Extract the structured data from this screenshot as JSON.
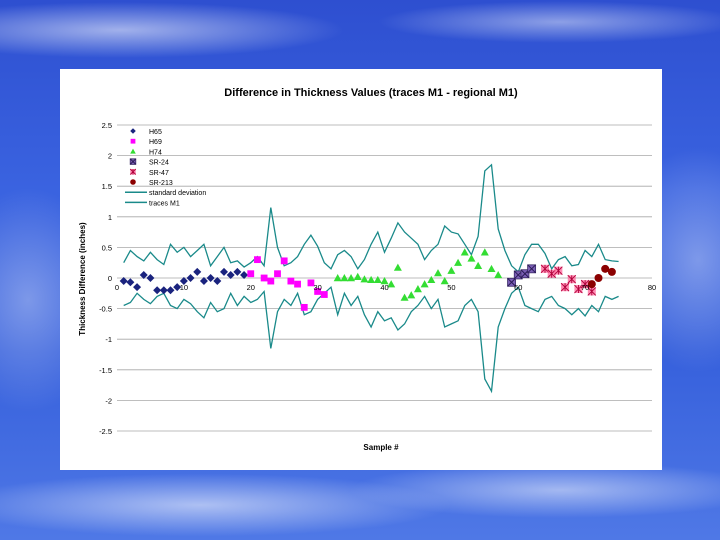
{
  "chart_data": {
    "type": "scatter",
    "title": "Difference in Thickness Values (traces M1 - regional M1)",
    "xlabel": "Sample #",
    "ylabel": "Thickness Difference (inches)",
    "xlim": [
      0,
      80
    ],
    "ylim": [
      -2.5,
      2.5
    ],
    "xticks": [
      "0",
      "10",
      "20",
      "30",
      "40",
      "50",
      "60",
      "70",
      "80"
    ],
    "yticks": [
      "2.5",
      "2",
      "1.5",
      "1",
      "0.5",
      "0",
      "-0.5",
      "-1",
      "-1.5",
      "-2",
      "-2.5"
    ],
    "grid": "horizontal",
    "legend_position": "top-left",
    "series": [
      {
        "name": "H65",
        "kind": "marker",
        "marker": "diamond",
        "color": "#1a237e",
        "x": [
          1,
          2,
          3,
          4,
          5,
          6,
          7,
          8,
          9,
          10,
          11,
          12,
          13,
          14,
          15,
          16,
          17,
          18,
          19
        ],
        "y": [
          -0.05,
          -0.07,
          -0.15,
          0.05,
          0,
          -0.2,
          -0.2,
          -0.2,
          -0.15,
          -0.05,
          0,
          0.1,
          -0.05,
          0,
          -0.05,
          0.1,
          0.05,
          0.1,
          0.05
        ]
      },
      {
        "name": "H69",
        "kind": "marker",
        "marker": "square",
        "color": "#ff00ff",
        "x": [
          20,
          21,
          22,
          23,
          24,
          25,
          26,
          27,
          28,
          29,
          30,
          31
        ],
        "y": [
          0.07,
          0.3,
          0,
          -0.05,
          0.07,
          0.28,
          -0.05,
          -0.1,
          -0.48,
          -0.08,
          -0.22,
          -0.27
        ]
      },
      {
        "name": "H74",
        "kind": "marker",
        "marker": "triangle",
        "color": "#33dd33",
        "x": [
          33,
          34,
          35,
          36,
          37,
          38,
          39,
          40,
          41,
          42,
          43,
          44,
          45,
          46,
          47,
          48,
          49,
          50,
          51,
          52,
          53,
          54,
          55,
          56,
          57
        ],
        "y": [
          0,
          0,
          0,
          0.02,
          -0.02,
          -0.03,
          -0.03,
          -0.05,
          -0.1,
          0.17,
          -0.32,
          -0.28,
          -0.18,
          -0.1,
          -0.03,
          0.08,
          -0.05,
          0.12,
          0.25,
          0.42,
          0.32,
          0.2,
          0.42,
          0.15,
          0.05
        ]
      },
      {
        "name": "SR-24",
        "kind": "marker",
        "marker": "square-x",
        "color": "#7b5fb5",
        "x": [
          59,
          60,
          61,
          62
        ],
        "y": [
          -0.07,
          0.05,
          0.07,
          0.15
        ]
      },
      {
        "name": "SR-47",
        "kind": "marker",
        "marker": "asterisk",
        "color": "#ff6699",
        "x": [
          64,
          65,
          66,
          67,
          68,
          69,
          70,
          71
        ],
        "y": [
          0.15,
          0.07,
          0.12,
          -0.15,
          -0.02,
          -0.18,
          -0.1,
          -0.22
        ]
      },
      {
        "name": "SR-213",
        "kind": "marker",
        "marker": "circle",
        "color": "#8b0000",
        "x": [
          71,
          72,
          73,
          74
        ],
        "y": [
          -0.1,
          0,
          0.15,
          0.1
        ]
      },
      {
        "name": "standard deviation",
        "kind": "line",
        "color": "#1a8a8a",
        "x": [
          1,
          2,
          3,
          4,
          5,
          6,
          7,
          8,
          9,
          10,
          11,
          12,
          13,
          14,
          15,
          16,
          17,
          18,
          19,
          20,
          21,
          22,
          23,
          24,
          25,
          26,
          27,
          28,
          29,
          30,
          31,
          32,
          33,
          34,
          35,
          36,
          37,
          38,
          39,
          40,
          41,
          42,
          43,
          44,
          45,
          46,
          47,
          48,
          49,
          50,
          51,
          52,
          53,
          54,
          55,
          56,
          57,
          58,
          59,
          60,
          61,
          62,
          63,
          64,
          65,
          66,
          67,
          68,
          69,
          70,
          71,
          72,
          73,
          74,
          75
        ],
        "y": [
          0.25,
          0.45,
          0.35,
          0.28,
          0.42,
          0.3,
          0.22,
          0.55,
          0.42,
          0.5,
          0.35,
          0.45,
          0.55,
          0.2,
          0.35,
          0.5,
          0.25,
          0.28,
          0.18,
          0.25,
          0.35,
          0.2,
          1.15,
          0.5,
          0.2,
          0.25,
          0.35,
          0.55,
          0.7,
          0.52,
          0.25,
          0.15,
          0.38,
          0.45,
          0.35,
          0.15,
          0.3,
          0.55,
          0.75,
          0.42,
          0.65,
          0.9,
          0.75,
          0.65,
          0.55,
          0.3,
          0.45,
          0.55,
          0.85,
          0.75,
          0.72,
          0.55,
          0.38,
          0.68,
          1.75,
          1.85,
          0.8,
          0.45,
          0.2,
          0.1,
          0.38,
          0.55,
          0.55,
          0.4,
          0.15,
          0.3,
          0.35,
          0.2,
          0.22,
          0.45,
          0.35,
          0.55,
          0.3,
          0.28,
          0.27
        ]
      },
      {
        "name": "traces M1",
        "kind": "line",
        "color": "#1a8a8a",
        "x": [
          1,
          2,
          3,
          4,
          5,
          6,
          7,
          8,
          9,
          10,
          11,
          12,
          13,
          14,
          15,
          16,
          17,
          18,
          19,
          20,
          21,
          22,
          23,
          24,
          25,
          26,
          27,
          28,
          29,
          30,
          31,
          32,
          33,
          34,
          35,
          36,
          37,
          38,
          39,
          40,
          41,
          42,
          43,
          44,
          45,
          46,
          47,
          48,
          49,
          50,
          51,
          52,
          53,
          54,
          55,
          56,
          57,
          58,
          59,
          60,
          61,
          62,
          63,
          64,
          65,
          66,
          67,
          68,
          69,
          70,
          71,
          72,
          73,
          74,
          75
        ],
        "y": [
          -0.45,
          -0.4,
          -0.25,
          -0.35,
          -0.42,
          -0.3,
          -0.25,
          -0.45,
          -0.5,
          -0.35,
          -0.42,
          -0.55,
          -0.65,
          -0.4,
          -0.55,
          -0.5,
          -0.25,
          -0.45,
          -0.3,
          -0.4,
          -0.35,
          -0.22,
          -1.15,
          -0.55,
          -0.35,
          -0.45,
          -0.25,
          -0.6,
          -0.55,
          -0.35,
          -0.25,
          -0.15,
          -0.6,
          -0.25,
          -0.45,
          -0.3,
          -0.6,
          -0.8,
          -0.55,
          -0.7,
          -0.65,
          -0.85,
          -0.75,
          -0.55,
          -0.45,
          -0.3,
          -0.5,
          -0.35,
          -0.8,
          -0.75,
          -0.7,
          -0.45,
          -0.35,
          -0.55,
          -1.65,
          -1.85,
          -0.8,
          -0.5,
          -0.25,
          -0.15,
          -0.45,
          -0.5,
          -0.55,
          -0.35,
          -0.3,
          -0.45,
          -0.5,
          -0.6,
          -0.5,
          -0.62,
          -0.45,
          -0.55,
          -0.3,
          -0.35,
          -0.3
        ]
      }
    ]
  }
}
